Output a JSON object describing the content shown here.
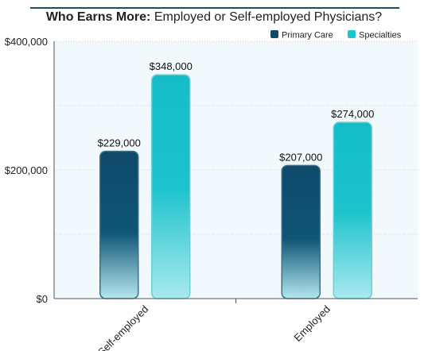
{
  "title_prefix": "Who Earns More:",
  "title_rest": " Employed or Self-employed Physicians?",
  "colors": {
    "primary_top": "#0f4a6b",
    "primary_bottom": "#b4e7ee",
    "specialty_top": "#14bec8",
    "specialty_bottom": "#a8eaf0",
    "legend_primary": "#0f4a6b",
    "legend_specialty": "#1cc6cf",
    "plot_bg": "#f2f9fd",
    "rule": "#1f4e62"
  },
  "chart_data": {
    "type": "bar",
    "title": "Who Earns More: Employed or Self-employed Physicians?",
    "categories": [
      "Self-employed",
      "Employed"
    ],
    "series": [
      {
        "name": "Primary Care",
        "values": [
          229000,
          207000
        ],
        "labels": [
          "$229,000",
          "$207,000"
        ]
      },
      {
        "name": "Specialties",
        "values": [
          348000,
          274000
        ],
        "labels": [
          "$348,000",
          "$274,000"
        ]
      }
    ],
    "ylim": [
      0,
      400000
    ],
    "yticks": [
      0,
      200000,
      400000
    ],
    "ytick_labels": [
      "$0",
      "$200,000",
      "$400,000"
    ],
    "grid": true,
    "legend_position": "top-right",
    "xlabel": "",
    "ylabel": ""
  }
}
